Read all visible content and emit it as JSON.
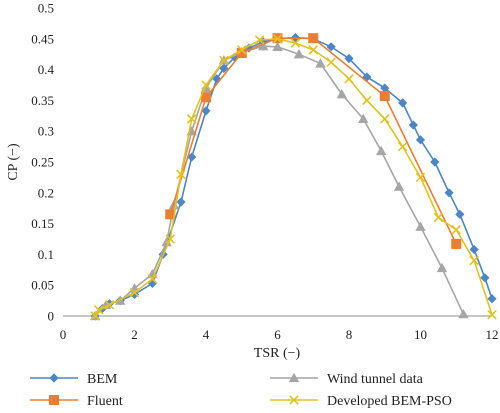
{
  "chart_data": {
    "type": "line",
    "title": "",
    "xlabel": "TSR (−)",
    "ylabel": "CP (−)",
    "xlim": [
      0,
      12
    ],
    "ylim": [
      0,
      0.5
    ],
    "x_ticks": [
      "0",
      "2",
      "4",
      "6",
      "8",
      "10",
      "12"
    ],
    "y_ticks": [
      "0",
      "0.05",
      "0.1",
      "0.15",
      "0.2",
      "0.25",
      "0.3",
      "0.35",
      "0.4",
      "0.45",
      "0.5"
    ],
    "grid": false,
    "legend": "bottom",
    "series": [
      {
        "name": "BEM",
        "color": "#4a86c8",
        "marker": "diamond",
        "x": [
          0.9,
          1.1,
          1.3,
          1.6,
          2.0,
          2.5,
          2.8,
          3.3,
          3.6,
          4.0,
          4.3,
          4.5,
          4.8,
          5.2,
          5.6,
          6.0,
          6.5,
          7.0,
          7.5,
          8.0,
          8.5,
          9.0,
          9.5,
          9.8,
          10.0,
          10.4,
          10.8,
          11.1,
          11.5,
          11.8,
          12.0
        ],
        "y": [
          0.0,
          0.012,
          0.02,
          0.025,
          0.035,
          0.053,
          0.1,
          0.185,
          0.258,
          0.333,
          0.385,
          0.402,
          0.42,
          0.435,
          0.445,
          0.45,
          0.452,
          0.45,
          0.437,
          0.418,
          0.388,
          0.37,
          0.346,
          0.31,
          0.286,
          0.25,
          0.2,
          0.165,
          0.108,
          0.062,
          0.028
        ]
      },
      {
        "name": "Wind tunnel data",
        "color": "#a6a6a6",
        "marker": "triangle",
        "x": [
          0.9,
          1.2,
          1.6,
          2.0,
          2.5,
          2.9,
          3.1,
          3.6,
          4.0,
          4.5,
          5.0,
          5.6,
          6.0,
          6.6,
          7.2,
          7.8,
          8.4,
          8.9,
          9.4,
          10.0,
          10.6,
          11.2
        ],
        "y": [
          0.0,
          0.018,
          0.025,
          0.045,
          0.068,
          0.12,
          0.18,
          0.3,
          0.37,
          0.415,
          0.428,
          0.438,
          0.437,
          0.425,
          0.41,
          0.36,
          0.32,
          0.268,
          0.21,
          0.145,
          0.078,
          0.003
        ]
      },
      {
        "name": "Fluent",
        "color": "#ed7d31",
        "marker": "square",
        "x": [
          3.0,
          4.0,
          5.0,
          6.0,
          7.0,
          9.0,
          11.0
        ],
        "y": [
          0.165,
          0.355,
          0.427,
          0.451,
          0.451,
          0.357,
          0.117
        ]
      },
      {
        "name": "Developed BEM-PSO",
        "color": "#e3c21e",
        "marker": "x",
        "x": [
          0.9,
          1.0,
          1.3,
          2.0,
          2.5,
          3.0,
          3.3,
          3.6,
          4.0,
          4.5,
          5.0,
          5.5,
          6.0,
          6.5,
          7.0,
          7.5,
          8.0,
          8.5,
          9.0,
          9.5,
          10.0,
          10.5,
          11.0,
          11.5,
          12.0
        ],
        "y": [
          0.0,
          0.01,
          0.018,
          0.038,
          0.06,
          0.125,
          0.23,
          0.32,
          0.375,
          0.415,
          0.432,
          0.448,
          0.45,
          0.443,
          0.432,
          0.412,
          0.385,
          0.35,
          0.32,
          0.275,
          0.225,
          0.16,
          0.14,
          0.09,
          0.002
        ]
      }
    ]
  }
}
